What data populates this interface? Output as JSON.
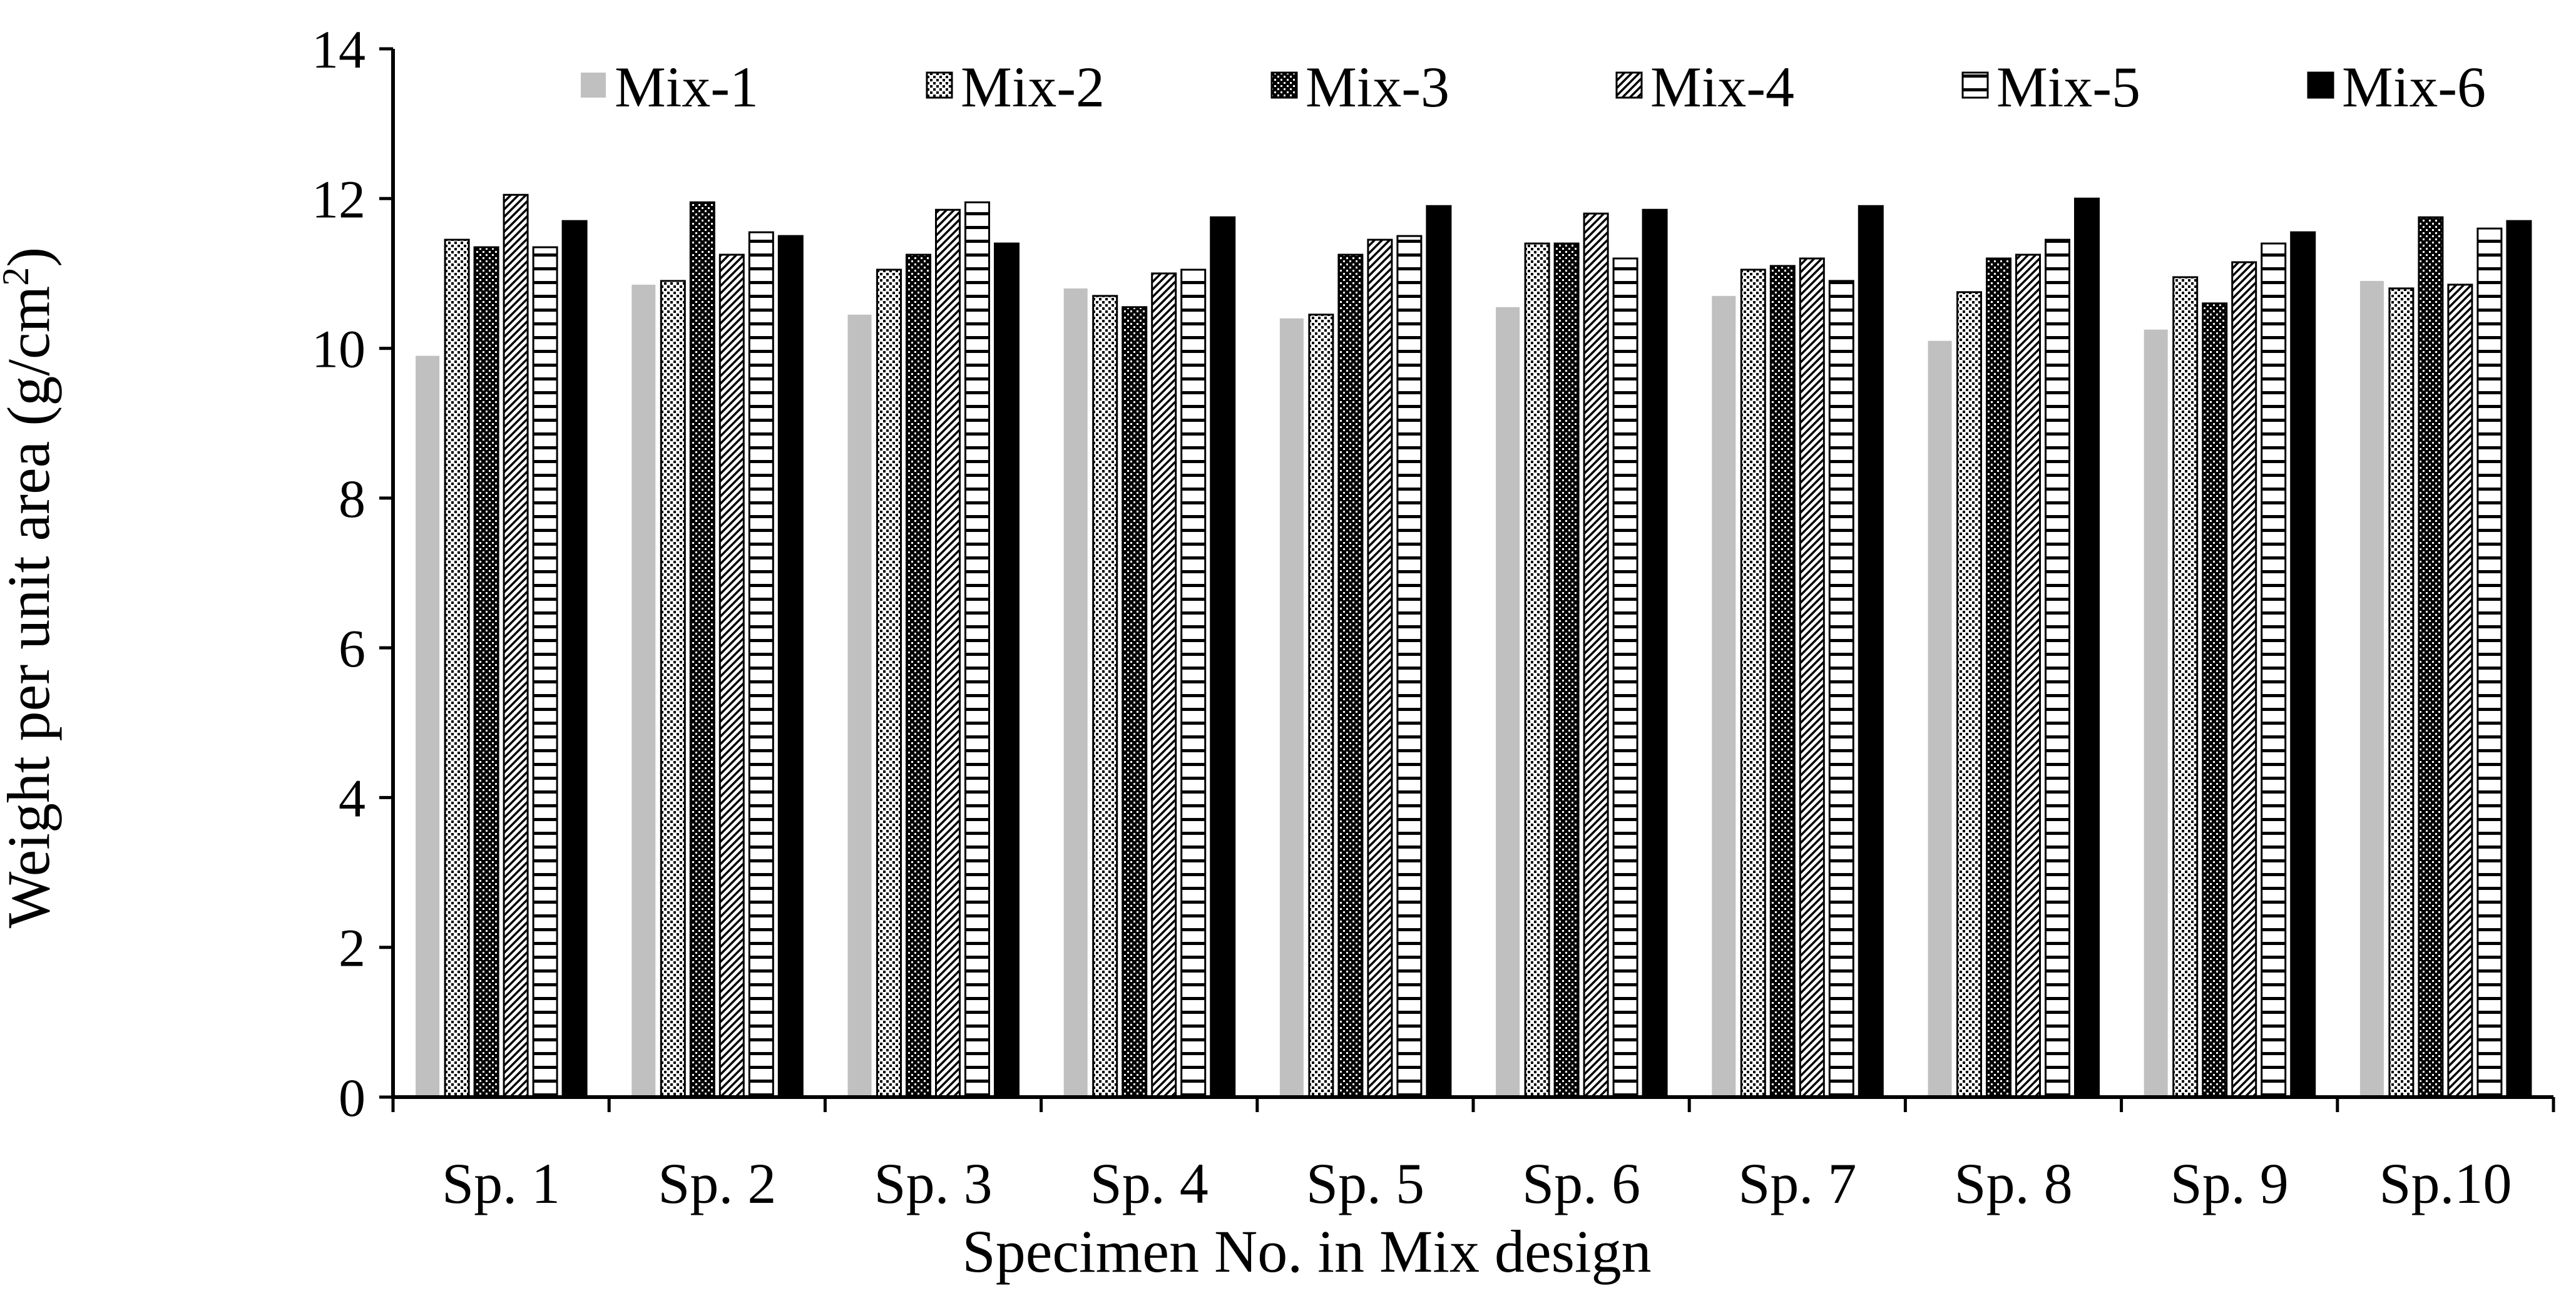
{
  "chart_data": {
    "type": "bar",
    "title": "",
    "xlabel": "Specimen No. in Mix design",
    "ylabel": {
      "base": "Weight per unit area (g/cm",
      "sup": "2",
      "end": ")"
    },
    "ylim": [
      0,
      14
    ],
    "yticks": [
      "0",
      "2",
      "4",
      "6",
      "8",
      "10",
      "12",
      "14"
    ],
    "grid": false,
    "legend_position": "top",
    "categories": [
      "Sp. 1",
      "Sp. 2",
      "Sp. 3",
      "Sp. 4",
      "Sp. 5",
      "Sp. 6",
      "Sp. 7",
      "Sp. 8",
      "Sp. 9",
      "Sp.10"
    ],
    "series": [
      {
        "name": "Mix-1",
        "pattern": "light-grey-solid",
        "values": [
          9.9,
          10.85,
          10.45,
          10.8,
          10.4,
          10.55,
          10.7,
          10.1,
          10.25,
          10.9
        ]
      },
      {
        "name": "Mix-2",
        "pattern": "fine-dots",
        "values": [
          11.45,
          10.9,
          11.05,
          10.7,
          10.45,
          11.4,
          11.05,
          10.75,
          10.95,
          10.8
        ]
      },
      {
        "name": "Mix-3",
        "pattern": "dark-checker",
        "values": [
          11.35,
          11.95,
          11.25,
          10.55,
          11.25,
          11.4,
          11.1,
          11.2,
          10.6,
          11.75
        ]
      },
      {
        "name": "Mix-4",
        "pattern": "diagonal-stripes",
        "values": [
          12.05,
          11.25,
          11.85,
          11.0,
          11.45,
          11.8,
          11.2,
          11.25,
          11.15,
          10.85
        ]
      },
      {
        "name": "Mix-5",
        "pattern": "horizontal-lines",
        "values": [
          11.35,
          11.55,
          11.95,
          11.05,
          11.5,
          11.2,
          10.9,
          11.45,
          11.4,
          11.6
        ]
      },
      {
        "name": "Mix-6",
        "pattern": "black-solid",
        "values": [
          11.7,
          11.5,
          11.4,
          11.75,
          11.9,
          11.85,
          11.9,
          12.0,
          11.55,
          11.7
        ]
      }
    ]
  }
}
